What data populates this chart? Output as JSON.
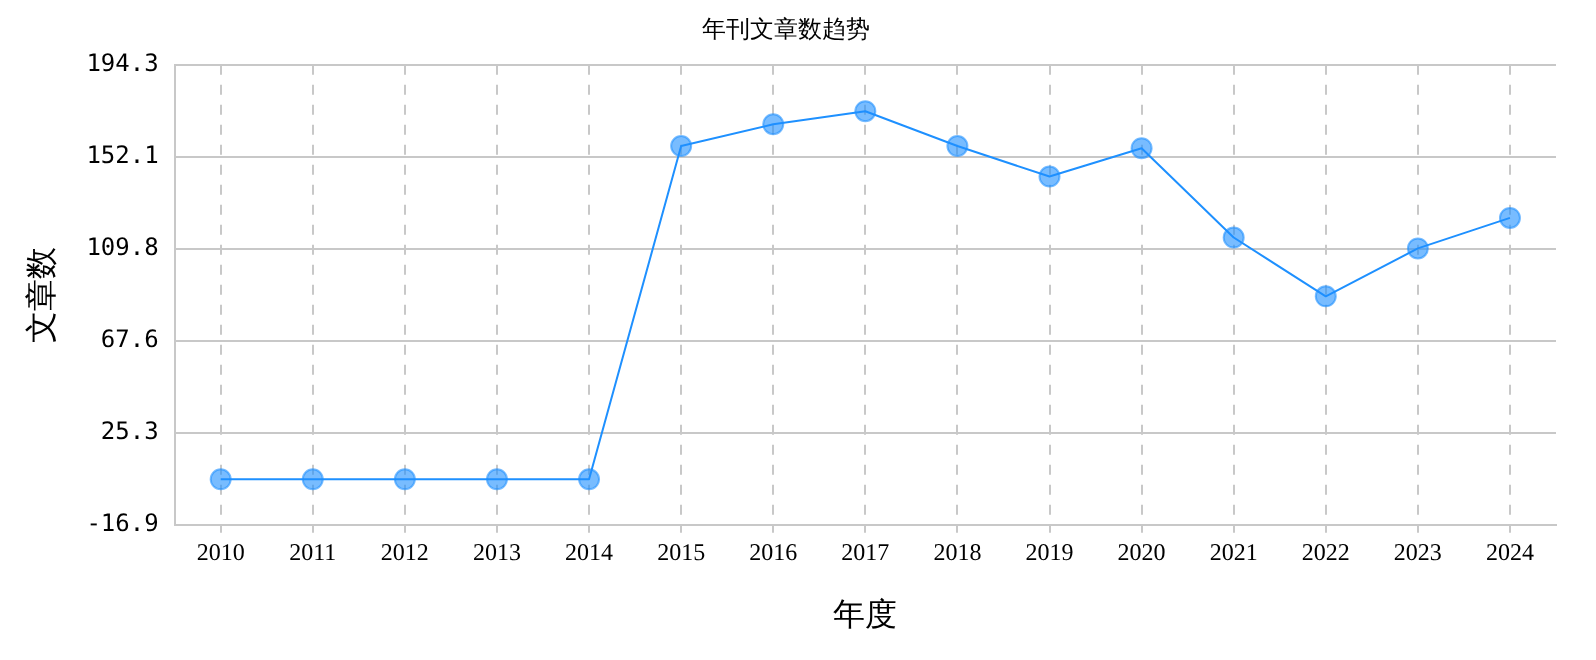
{
  "chart_data": {
    "type": "line",
    "title": "年刊文章数趋势",
    "xlabel": "年度",
    "ylabel": "文章数",
    "categories": [
      "2010",
      "2011",
      "2012",
      "2013",
      "2014",
      "2015",
      "2016",
      "2017",
      "2018",
      "2019",
      "2020",
      "2021",
      "2022",
      "2023",
      "2024"
    ],
    "series": [
      {
        "color": "#1e90ff",
        "values": [
          4,
          4,
          4,
          4,
          4,
          157,
          167,
          173,
          157,
          143,
          156,
          115,
          88,
          110,
          124
        ]
      }
    ],
    "ylim": [
      -16.9,
      194.3
    ],
    "yticks": [
      -16.9,
      25.3,
      67.6,
      109.8,
      152.1,
      194.3
    ],
    "grid": true,
    "marker": "circle",
    "line_style": "solid",
    "legend": false
  }
}
